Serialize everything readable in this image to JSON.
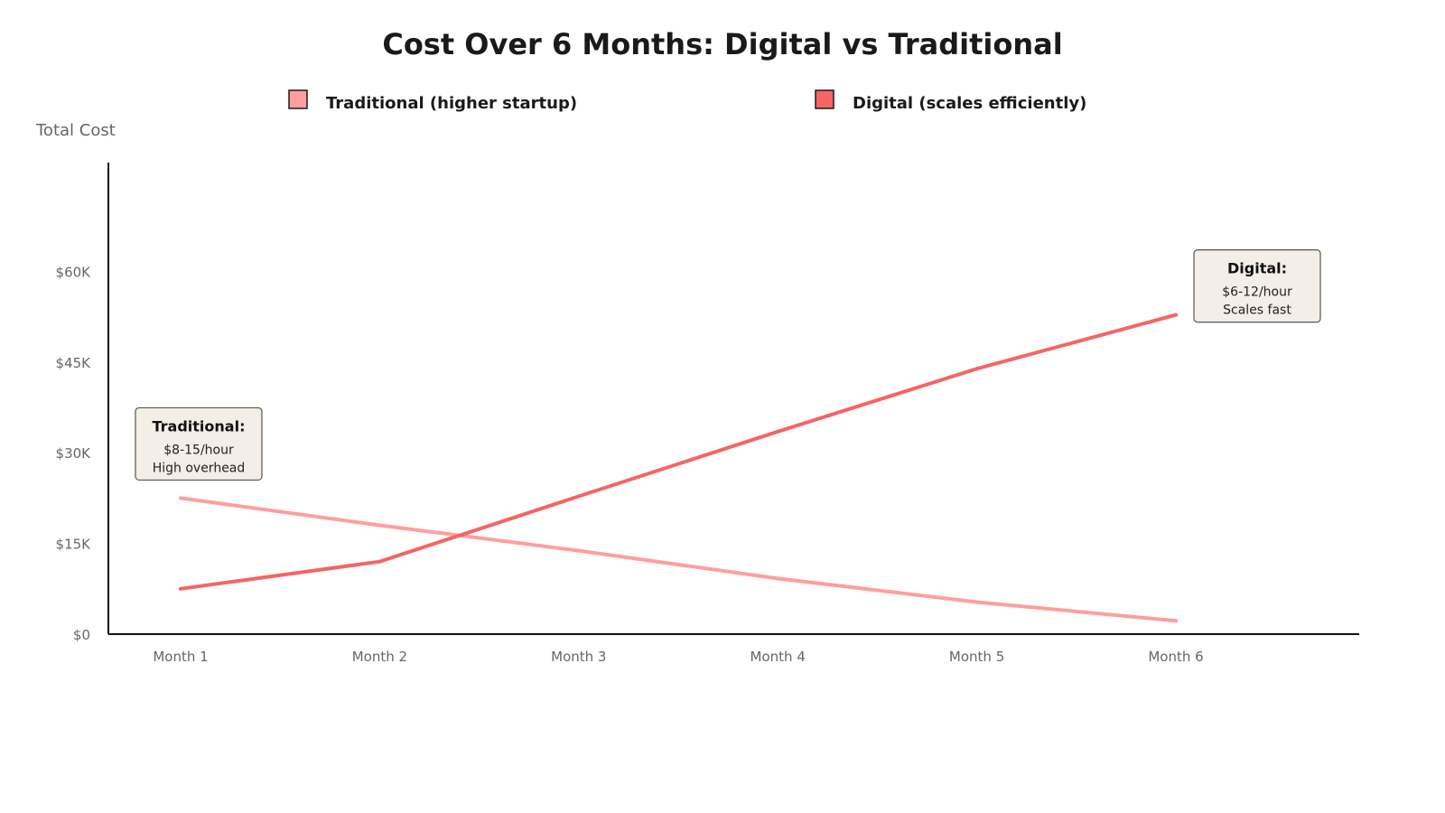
{
  "chart_data": {
    "type": "line",
    "title": "Cost Over 6 Months: Digital vs Traditional",
    "xlabel": "",
    "ylabel": "Total Cost",
    "categories": [
      "Month 1",
      "Month 2",
      "Month 3",
      "Month 4",
      "Month 5",
      "Month 6"
    ],
    "y_ticks": [
      {
        "value": 0,
        "label": "$0"
      },
      {
        "value": 15000,
        "label": "$15K"
      },
      {
        "value": 30000,
        "label": "$30K"
      },
      {
        "value": 45000,
        "label": "$45K"
      },
      {
        "value": 60000,
        "label": "$60K"
      }
    ],
    "ylim": [
      0,
      78000
    ],
    "grid": false,
    "legend_position": "top",
    "series": [
      {
        "name": "Traditional (higher startup)",
        "color": "#FF9E9E",
        "values": [
          22500,
          18000,
          13800,
          9200,
          5300,
          2200
        ]
      },
      {
        "name": "Digital (scales efficiently)",
        "color": "#F56565",
        "values": [
          7500,
          12000,
          22800,
          33500,
          43900,
          52800
        ]
      }
    ],
    "annotations": [
      {
        "series_index": 0,
        "title": "Traditional:",
        "lines": [
          "$8-15/hour",
          "High overhead"
        ]
      },
      {
        "series_index": 1,
        "title": "Digital:",
        "lines": [
          "$6-12/hour",
          "Scales fast"
        ]
      }
    ],
    "annotation_style": {
      "fill": "#F3EEE6",
      "stroke": "#555555"
    }
  }
}
